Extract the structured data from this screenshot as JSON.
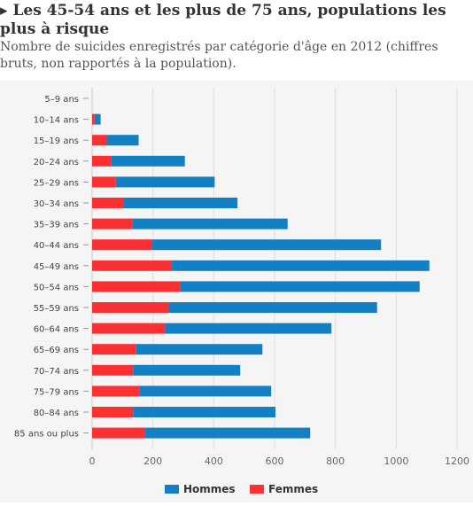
{
  "title": "▸ Les 45-54 ans et les plus de 75 ans, populations les plus à risque",
  "subtitle": "Nombre de suicides enregistrés par catégorie d'âge en 2012 (chiffres bruts, non rapportés à la population).",
  "colors": {
    "hommes": "#1380c4",
    "femmes": "#fb3033"
  },
  "chart_data": {
    "type": "bar",
    "orientation": "horizontal",
    "stacked": true,
    "categories": [
      "5–9 ans",
      "10–14 ans",
      "15–19 ans",
      "20–24 ans",
      "25–29 ans",
      "30–34 ans",
      "35–39 ans",
      "40–44 ans",
      "45–49 ans",
      "50–54 ans",
      "55–59 ans",
      "60–64 ans",
      "65–69 ans",
      "70–74 ans",
      "75–79 ans",
      "80–84 ans",
      "85 ans ou plus"
    ],
    "series": [
      {
        "name": "Femmes",
        "color": "#fb3033",
        "values": [
          0,
          8,
          48,
          62,
          78,
          102,
          133,
          198,
          262,
          290,
          252,
          240,
          145,
          135,
          157,
          135,
          175
        ]
      },
      {
        "name": "Hommes",
        "color": "#1380c4",
        "values": [
          0,
          20,
          105,
          243,
          325,
          376,
          510,
          752,
          847,
          787,
          685,
          547,
          415,
          352,
          432,
          468,
          542
        ]
      }
    ],
    "xlim": [
      0,
      1200
    ],
    "xticks": [
      0,
      200,
      400,
      600,
      800,
      1000,
      1200
    ],
    "grid": true,
    "legend_position": "bottom",
    "legend_order": [
      "Hommes",
      "Femmes"
    ]
  }
}
